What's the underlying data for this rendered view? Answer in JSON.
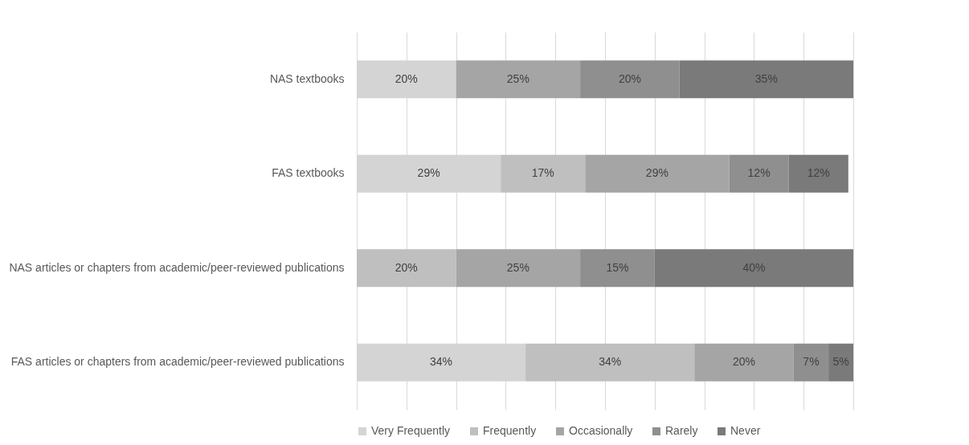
{
  "chart_data": {
    "type": "bar",
    "orientation": "horizontal",
    "stacked": true,
    "categories": [
      "NAS textbooks",
      "FAS textbooks",
      "NAS articles or chapters from academic/peer-reviewed publications",
      "FAS articles or chapters from academic/peer-reviewed publications"
    ],
    "series": [
      {
        "name": "Very Frequently",
        "color": "#d4d4d4",
        "values": [
          20,
          29,
          null,
          34
        ],
        "value_labels": [
          "20%",
          "29%",
          null,
          "34%"
        ]
      },
      {
        "name": "Frequently",
        "color": "#bfbfbf",
        "values": [
          null,
          17,
          20,
          34
        ],
        "value_labels": [
          null,
          "17%",
          "20%",
          "34%"
        ]
      },
      {
        "name": "Occasionally",
        "color": "#a5a5a5",
        "values": [
          25,
          29,
          25,
          20
        ],
        "value_labels": [
          "25%",
          "29%",
          "25%",
          "20%"
        ]
      },
      {
        "name": "Rarely",
        "color": "#8f8f8f",
        "values": [
          20,
          12,
          15,
          7
        ],
        "value_labels": [
          "20%",
          "12%",
          "15%",
          "7%"
        ]
      },
      {
        "name": "Never",
        "color": "#7a7a7a",
        "values": [
          35,
          12,
          40,
          5
        ],
        "value_labels": [
          "35%",
          "12%",
          "40%",
          "5%"
        ]
      }
    ],
    "xlim": [
      0,
      100
    ],
    "xticks": [
      {
        "value": 0,
        "label": null
      },
      {
        "value": 10,
        "label": null
      },
      {
        "value": 20,
        "label": null
      },
      {
        "value": 30,
        "label": null
      },
      {
        "value": 40,
        "label": null
      },
      {
        "value": 50,
        "label": null
      },
      {
        "value": 60,
        "label": null
      },
      {
        "value": 70,
        "label": null
      },
      {
        "value": 80,
        "label": null
      },
      {
        "value": 90,
        "label": null
      },
      {
        "value": 100,
        "label": null
      }
    ],
    "grid": "x",
    "legend": "bottom",
    "tick_labels": "y"
  }
}
